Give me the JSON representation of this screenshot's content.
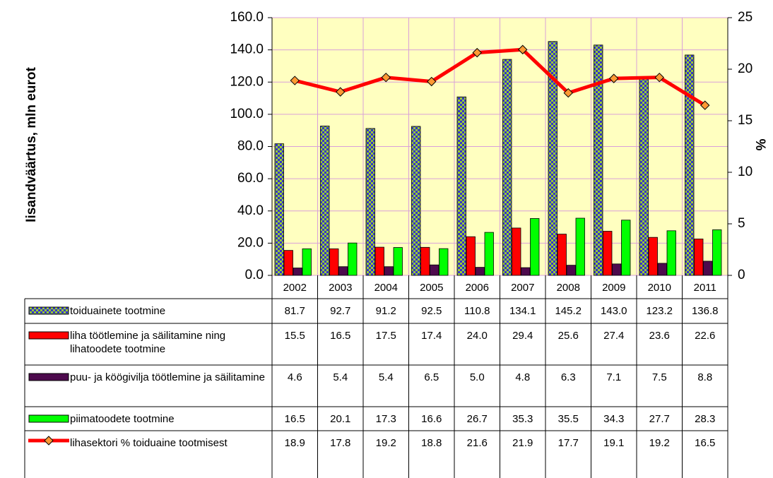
{
  "chart_data": {
    "type": "bar",
    "y_axis_label": "Iisandväärtus, mln eurot",
    "y2_axis_label": "%",
    "categories": [
      "2002",
      "2003",
      "2004",
      "2005",
      "2006",
      "2007",
      "2008",
      "2009",
      "2010",
      "2011"
    ],
    "ylim": [
      0,
      160
    ],
    "yticks": [
      {
        "value": 0,
        "label": "0.0"
      },
      {
        "value": 20,
        "label": "20.0"
      },
      {
        "value": 40,
        "label": "40.0"
      },
      {
        "value": 60,
        "label": "60.0"
      },
      {
        "value": 80,
        "label": "80.0"
      },
      {
        "value": 100,
        "label": "100.0"
      },
      {
        "value": 120,
        "label": "120.0"
      },
      {
        "value": 140,
        "label": "140.0"
      },
      {
        "value": 160,
        "label": "160.0"
      }
    ],
    "y2lim": [
      0,
      25
    ],
    "y2ticks": [
      0,
      5,
      10,
      15,
      20,
      25
    ],
    "grid": true,
    "series": [
      {
        "name": "toiduainete tootmine",
        "type": "bar",
        "color": "#3333cc",
        "values": [
          81.7,
          92.7,
          91.2,
          92.5,
          110.8,
          134.1,
          145.2,
          143.0,
          123.2,
          136.8
        ],
        "value_labels": [
          "81.7",
          "92.7",
          "91.2",
          "92.5",
          "110.8",
          "134.1",
          "145.2",
          "143.0",
          "123.2",
          "136.8"
        ]
      },
      {
        "name": "liha töötlemine ja säilitamine ning lihatoodete tootmine",
        "type": "bar",
        "color": "#ff0000",
        "values": [
          15.5,
          16.5,
          17.5,
          17.4,
          24.0,
          29.4,
          25.6,
          27.4,
          23.6,
          22.6
        ],
        "value_labels": [
          "15.5",
          "16.5",
          "17.5",
          "17.4",
          "24.0",
          "29.4",
          "25.6",
          "27.4",
          "23.6",
          "22.6"
        ]
      },
      {
        "name": "puu- ja köögivilja töötlemine ja säilitamine",
        "type": "bar",
        "color": "#4d0a4d",
        "values": [
          4.6,
          5.4,
          5.4,
          6.5,
          5.0,
          4.8,
          6.3,
          7.1,
          7.5,
          8.8
        ],
        "value_labels": [
          "4.6",
          "5.4",
          "5.4",
          "6.5",
          "5.0",
          "4.8",
          "6.3",
          "7.1",
          "7.5",
          "8.8"
        ]
      },
      {
        "name": "piimatoodete tootmine",
        "type": "bar",
        "color": "#00ff00",
        "values": [
          16.5,
          20.1,
          17.3,
          16.6,
          26.7,
          35.3,
          35.5,
          34.3,
          27.7,
          28.3
        ],
        "value_labels": [
          "16.5",
          "20.1",
          "17.3",
          "16.6",
          "26.7",
          "35.3",
          "35.5",
          "34.3",
          "27.7",
          "28.3"
        ]
      },
      {
        "name": "lihasektori % toiduaine tootmisest",
        "type": "line",
        "axis": "y2",
        "color": "#ff0000",
        "marker_color": "#ff9933",
        "values": [
          18.9,
          17.8,
          19.2,
          18.8,
          21.6,
          21.9,
          17.7,
          19.1,
          19.2,
          16.5
        ],
        "value_labels": [
          "18.9",
          "17.8",
          "19.2",
          "18.8",
          "21.6",
          "21.9",
          "17.7",
          "19.1",
          "19.2",
          "16.5"
        ]
      }
    ]
  }
}
